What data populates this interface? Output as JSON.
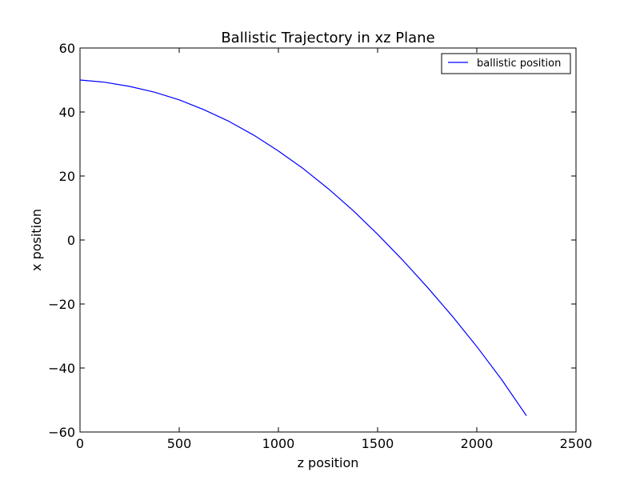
{
  "chart_data": {
    "type": "line",
    "title": "Ballistic Trajectory in xz Plane",
    "xlabel": "z position",
    "ylabel": "x position",
    "xlim": [
      0,
      2500
    ],
    "ylim": [
      -60,
      60
    ],
    "xticks": [
      0,
      500,
      1000,
      1500,
      2000,
      2500
    ],
    "yticks": [
      -60,
      -40,
      -20,
      0,
      20,
      40,
      60
    ],
    "xtick_labels": [
      "0",
      "500",
      "1000",
      "1500",
      "2000",
      "2500"
    ],
    "ytick_labels": [
      "−60",
      "−40",
      "−20",
      "0",
      "20",
      "40",
      "60"
    ],
    "grid": false,
    "legend_position": "top-right",
    "series": [
      {
        "name": "ballistic position",
        "color": "#0000ff",
        "x": [
          0,
          125,
          250,
          375,
          500,
          625,
          750,
          875,
          1000,
          1125,
          1250,
          1375,
          1500,
          1625,
          1750,
          1875,
          2000,
          2125,
          2250
        ],
        "y": [
          50,
          49.3,
          48,
          46.2,
          43.8,
          40.7,
          37.1,
          32.8,
          27.8,
          22.3,
          16.1,
          9.3,
          1.8,
          -6.2,
          -14.7,
          -23.7,
          -33.3,
          -43.6,
          -54.9
        ]
      }
    ]
  }
}
